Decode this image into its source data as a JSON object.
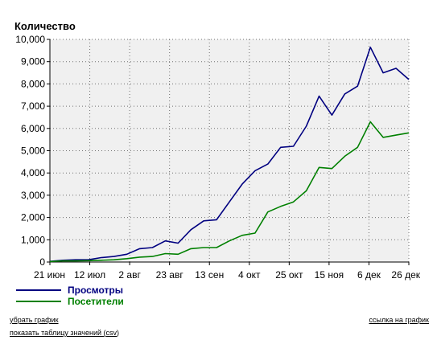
{
  "chart_data": {
    "type": "line",
    "title": "",
    "ylabel": "Количество",
    "xlabel": "",
    "ylim": [
      0,
      10000
    ],
    "yticks": [
      0,
      1000,
      2000,
      3000,
      4000,
      5000,
      6000,
      7000,
      8000,
      9000,
      10000
    ],
    "ytick_labels": [
      "0",
      "1,000",
      "2,000",
      "3,000",
      "4,000",
      "5,000",
      "6,000",
      "7,000",
      "8,000",
      "9,000",
      "10,000"
    ],
    "xtick_labels": [
      "21 июн",
      "12 июл",
      "2 авг",
      "23 авг",
      "13 сен",
      "4 окт",
      "25 окт",
      "15 ноя",
      "6 дек",
      "26 дек"
    ],
    "grid": true,
    "legend_position": "bottom-left",
    "series": [
      {
        "name": "Просмотры",
        "color": "#000080",
        "values": [
          30,
          80,
          100,
          100,
          200,
          250,
          350,
          600,
          650,
          950,
          850,
          1450,
          1850,
          1900,
          2700,
          3500,
          4100,
          4400,
          5150,
          5200,
          6100,
          7450,
          6600,
          7550,
          7900,
          9650,
          8500,
          8700,
          8200
        ]
      },
      {
        "name": "Посетители",
        "color": "#008000",
        "values": [
          20,
          50,
          50,
          60,
          80,
          100,
          150,
          220,
          250,
          380,
          350,
          600,
          650,
          650,
          950,
          1200,
          1300,
          2250,
          2500,
          2700,
          3200,
          4250,
          4200,
          4750,
          5150,
          6300,
          5600,
          5700,
          5800
        ]
      }
    ]
  },
  "links": {
    "remove_chart": "убрать график",
    "show_table_prefix": "показать таблицу значений (",
    "show_table_csv": "csv",
    "show_table_suffix": ")",
    "chart_link": "ссылка на график"
  }
}
